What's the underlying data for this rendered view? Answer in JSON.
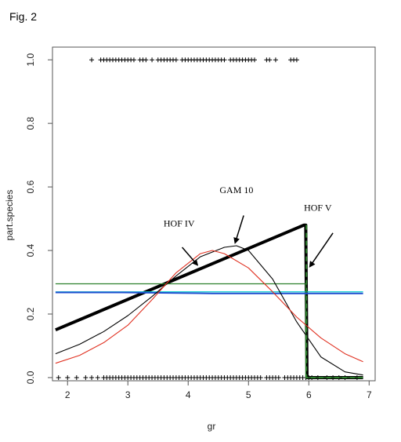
{
  "figure_label": "Fig. 2",
  "chart_data": {
    "type": "line",
    "xlabel": "gr",
    "ylabel": "part.species",
    "xlim": [
      1.75,
      7.1
    ],
    "ylim": [
      -0.01,
      1.04
    ],
    "x_ticks": [
      "2",
      "3",
      "4",
      "5",
      "6",
      "7"
    ],
    "y_ticks": [
      "0.0",
      "0.2",
      "0.4",
      "0.6",
      "0.8",
      "1.0"
    ],
    "grid": false,
    "series": [
      {
        "name": "",
        "color": "#000000",
        "style": "thick",
        "x": [
          1.8,
          5.92,
          5.95,
          5.97,
          6.9
        ],
        "y": [
          0.15,
          0.48,
          0.48,
          0.0,
          0.0
        ]
      },
      {
        "name": "",
        "color": "#2a7f2a",
        "style": "step",
        "x": [
          1.8,
          5.95,
          5.95,
          6.9
        ],
        "y": [
          0.295,
          0.295,
          0.0,
          0.0
        ]
      },
      {
        "name": "",
        "color": "#00cccc",
        "style": "flat",
        "x": [
          1.8,
          6.9
        ],
        "y": [
          0.27,
          0.27
        ]
      },
      {
        "name": "",
        "color": "#1f4fd0",
        "style": "segments",
        "x": [
          1.8,
          2.9,
          4.4,
          6.9
        ],
        "y": [
          0.268,
          0.268,
          0.265,
          0.265
        ]
      },
      {
        "name": "",
        "color": "#000000",
        "style": "thin",
        "x": [
          1.8,
          2.2,
          2.6,
          3.0,
          3.4,
          3.8,
          4.2,
          4.6,
          4.8,
          5.0,
          5.4,
          5.8,
          6.2,
          6.6,
          6.9
        ],
        "y": [
          0.075,
          0.105,
          0.145,
          0.195,
          0.255,
          0.32,
          0.38,
          0.41,
          0.415,
          0.4,
          0.31,
          0.175,
          0.065,
          0.018,
          0.008
        ]
      },
      {
        "name": "",
        "color": "#e03020",
        "style": "thin",
        "x": [
          1.8,
          2.2,
          2.6,
          3.0,
          3.4,
          3.8,
          4.2,
          4.4,
          4.6,
          5.0,
          5.4,
          5.8,
          6.2,
          6.6,
          6.9
        ],
        "y": [
          0.045,
          0.07,
          0.11,
          0.165,
          0.245,
          0.33,
          0.39,
          0.4,
          0.39,
          0.345,
          0.27,
          0.19,
          0.125,
          0.075,
          0.05
        ]
      }
    ],
    "rug_top": {
      "y": 1.0,
      "x": [
        2.4,
        2.55,
        2.6,
        2.65,
        2.7,
        2.75,
        2.8,
        2.85,
        2.9,
        2.95,
        3.0,
        3.05,
        3.1,
        3.2,
        3.25,
        3.3,
        3.4,
        3.5,
        3.55,
        3.6,
        3.65,
        3.7,
        3.75,
        3.8,
        3.9,
        3.95,
        4.0,
        4.05,
        4.1,
        4.15,
        4.2,
        4.25,
        4.3,
        4.35,
        4.4,
        4.45,
        4.5,
        4.55,
        4.6,
        4.7,
        4.75,
        4.8,
        4.85,
        4.9,
        4.95,
        5.0,
        5.05,
        5.1,
        5.3,
        5.35,
        5.45,
        5.7,
        5.75,
        5.8
      ]
    },
    "rug_bottom": {
      "y": 0.0,
      "x": [
        1.85,
        2.0,
        2.15,
        2.3,
        2.4,
        2.5,
        2.6,
        2.65,
        2.7,
        2.75,
        2.8,
        2.85,
        2.9,
        2.95,
        3.0,
        3.05,
        3.1,
        3.15,
        3.2,
        3.25,
        3.3,
        3.35,
        3.4,
        3.45,
        3.5,
        3.55,
        3.6,
        3.65,
        3.7,
        3.75,
        3.8,
        3.85,
        3.9,
        3.95,
        4.0,
        4.05,
        4.1,
        4.15,
        4.2,
        4.25,
        4.3,
        4.35,
        4.4,
        4.45,
        4.5,
        4.55,
        4.6,
        4.65,
        4.7,
        4.75,
        4.8,
        4.85,
        4.9,
        4.95,
        5.0,
        5.05,
        5.1,
        5.15,
        5.2,
        5.3,
        5.35,
        5.4,
        5.45,
        5.5,
        5.6,
        5.65,
        5.7,
        5.75,
        5.8,
        5.85,
        5.9,
        5.95,
        6.0,
        6.05,
        6.15,
        6.3,
        6.4,
        6.5,
        6.6,
        6.8
      ]
    },
    "annotations": [
      {
        "text": "HOF IV",
        "x": 3.85,
        "y": 0.475,
        "arrow_from": [
          3.9,
          0.41
        ],
        "arrow_to": [
          4.15,
          0.355
        ]
      },
      {
        "text": "GAM 10",
        "x": 4.8,
        "y": 0.58,
        "arrow_from": [
          4.92,
          0.51
        ],
        "arrow_to": [
          4.78,
          0.425
        ]
      },
      {
        "text": "HOF V",
        "x": 6.15,
        "y": 0.525,
        "arrow_from": [
          6.4,
          0.455
        ],
        "arrow_to": [
          6.02,
          0.35
        ]
      }
    ]
  }
}
